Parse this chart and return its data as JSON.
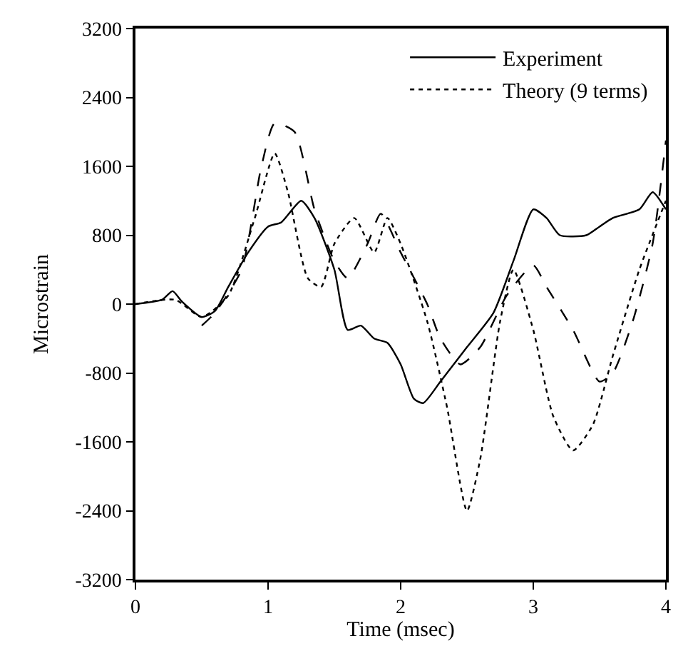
{
  "chart_data": {
    "type": "line",
    "xlabel": "Time (msec)",
    "ylabel": "Microstrain",
    "xlim": [
      0,
      4
    ],
    "xticks": [
      0,
      1,
      2,
      3,
      4
    ],
    "ylim": [
      -3200,
      3200
    ],
    "yticks": [
      -3200,
      -2400,
      -1600,
      -800,
      0,
      800,
      1600,
      2400,
      3200
    ],
    "legend": "top right",
    "marker": "none",
    "series": [
      {
        "name": "Experiment",
        "color": "#000000",
        "line_style": "solid",
        "x": [
          0,
          0.2,
          0.28,
          0.35,
          0.5,
          0.6,
          0.7,
          0.85,
          1.0,
          1.1,
          1.25,
          1.35,
          1.5,
          1.6,
          1.7,
          1.8,
          1.9,
          2.0,
          2.1,
          2.17,
          2.3,
          2.5,
          2.7,
          2.85,
          3.0,
          3.1,
          3.2,
          3.4,
          3.5,
          3.6,
          3.8,
          3.9,
          4.0
        ],
        "values": [
          0,
          50,
          150,
          30,
          -150,
          -80,
          200,
          600,
          900,
          950,
          1200,
          1000,
          400,
          -300,
          -250,
          -400,
          -450,
          -700,
          -1100,
          -1150,
          -900,
          -500,
          -100,
          500,
          1100,
          1000,
          800,
          800,
          900,
          1000,
          1100,
          1300,
          1100
        ]
      },
      {
        "name": "Theory (9 terms)",
        "color": "#000000",
        "line_style": "dotted",
        "x": [
          0,
          0.3,
          0.5,
          0.7,
          0.9,
          1.05,
          1.15,
          1.3,
          1.4,
          1.5,
          1.65,
          1.8,
          1.9,
          2.0,
          2.2,
          2.35,
          2.5,
          2.6,
          2.75,
          2.85,
          3.0,
          3.15,
          3.3,
          3.45,
          3.6,
          3.8,
          4.0
        ],
        "values": [
          0,
          50,
          -150,
          100,
          1000,
          1750,
          1300,
          300,
          200,
          700,
          1000,
          600,
          1000,
          700,
          -200,
          -1200,
          -2400,
          -1800,
          -200,
          400,
          -300,
          -1300,
          -1700,
          -1400,
          -600,
          400,
          1200
        ]
      },
      {
        "color": "#000000",
        "line_style": "dashed",
        "x": [
          0.5,
          0.6,
          0.8,
          0.95,
          1.05,
          1.2,
          1.35,
          1.5,
          1.6,
          1.75,
          1.85,
          2.0,
          2.2,
          2.3,
          2.45,
          2.6,
          2.8,
          3.0,
          3.1,
          3.3,
          3.5,
          3.6,
          3.75,
          3.9,
          4.0
        ],
        "values": [
          -250,
          -100,
          400,
          1600,
          2100,
          2000,
          1100,
          500,
          300,
          700,
          1050,
          600,
          0,
          -400,
          -700,
          -500,
          100,
          450,
          200,
          -300,
          -900,
          -800,
          -200,
          700,
          1900
        ]
      }
    ]
  }
}
